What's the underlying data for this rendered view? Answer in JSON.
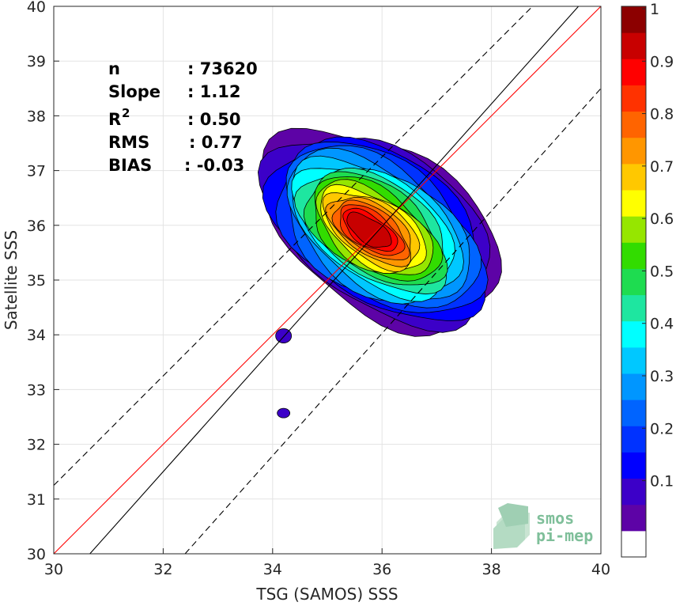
{
  "chart_data": {
    "type": "contour-density-scatter",
    "xlabel": "TSG (SAMOS) SSS",
    "ylabel": "Satellite SSS",
    "xlim": [
      30,
      40
    ],
    "ylim": [
      30,
      40
    ],
    "xticks": [
      "30",
      "32",
      "34",
      "36",
      "38",
      "40"
    ],
    "yticks": [
      "30",
      "31",
      "32",
      "33",
      "34",
      "35",
      "36",
      "37",
      "38",
      "39",
      "40"
    ],
    "grid": true,
    "stats": [
      {
        "label": "n",
        "value": ": 73620"
      },
      {
        "label": "Slope",
        "value": ": 1.12"
      },
      {
        "label": "R",
        "sup": "2",
        "value": ": 0.50"
      },
      {
        "label": "RMS",
        "value": ": 0.77"
      },
      {
        "label": "BIAS",
        "value": ": -0.03"
      }
    ],
    "lines": {
      "identity": {
        "color": "#ff0000",
        "x": [
          30,
          40
        ],
        "y": [
          30,
          40
        ]
      },
      "regression": {
        "color": "#000000",
        "x": [
          30.66,
          39.59
        ],
        "y": [
          30,
          40
        ]
      },
      "upper_bound": {
        "color": "#000000",
        "dashed": true,
        "x": [
          30,
          38.75
        ],
        "y": [
          31.25,
          40
        ]
      },
      "lower_bound": {
        "color": "#000000",
        "dashed": true,
        "x": [
          32.4,
          40
        ],
        "y": [
          30,
          38.5
        ]
      }
    },
    "density_peak": {
      "x": 35.75,
      "y": 35.9
    },
    "outlier_blobs": [
      {
        "x": 34.2,
        "y": 33.98,
        "level": 0.1
      },
      {
        "x": 34.2,
        "y": 32.57,
        "level": 0.1
      }
    ],
    "contour_levels": [
      0.05,
      0.1,
      0.15,
      0.2,
      0.25,
      0.3,
      0.35,
      0.4,
      0.45,
      0.5,
      0.55,
      0.6,
      0.65,
      0.7,
      0.75,
      0.8,
      0.85,
      0.9,
      0.95
    ],
    "colorbar": {
      "ticks": [
        "0.1",
        "0.2",
        "0.3",
        "0.4",
        "0.5",
        "0.6",
        "0.7",
        "0.8",
        "0.9",
        "1"
      ],
      "tick_values": [
        0.1,
        0.2,
        0.3,
        0.4,
        0.5,
        0.6,
        0.7,
        0.8,
        0.9,
        1.0
      ],
      "colors": [
        "#ffffff",
        "#5d03a6",
        "#3c00c8",
        "#0000ff",
        "#0032ff",
        "#0064ff",
        "#0096ff",
        "#00c8ff",
        "#00ffff",
        "#1ee6a0",
        "#1edc50",
        "#32dc00",
        "#96e600",
        "#ffff00",
        "#ffc800",
        "#ff9600",
        "#ff6400",
        "#ff3200",
        "#ff0000",
        "#c80000",
        "#8c0000"
      ]
    }
  },
  "logo": {
    "line1": "smos",
    "line2": "pi-mep"
  }
}
